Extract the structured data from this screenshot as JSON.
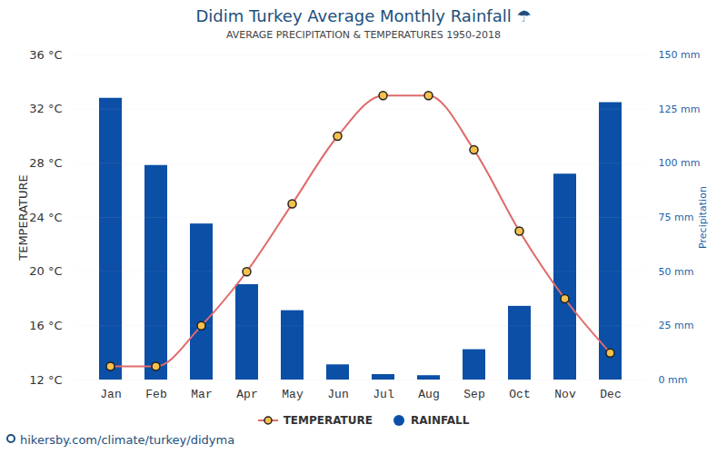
{
  "chart_data": {
    "type": "bar",
    "title": "Didim Turkey Average Monthly Rainfall ☂",
    "subtitle": "AVERAGE PRECIPITATION & TEMPERATURES 1950-2018",
    "caption": "hikersby.com/climate/turkey/didyma",
    "categories": [
      "Jan",
      "Feb",
      "Mar",
      "Apr",
      "May",
      "Jun",
      "Jul",
      "Aug",
      "Sep",
      "Oct",
      "Nov",
      "Dec"
    ],
    "ylabel": "TEMPERATURE",
    "y2label": "Precipitation",
    "ylim": [
      12,
      36
    ],
    "yticks": [
      {
        "value": 12,
        "label": "12 °C"
      },
      {
        "value": 16,
        "label": "16 °C"
      },
      {
        "value": 20,
        "label": "20 °C"
      },
      {
        "value": 24,
        "label": "24 °C"
      },
      {
        "value": 28,
        "label": "28 °C"
      },
      {
        "value": 32,
        "label": "32 °C"
      },
      {
        "value": 36,
        "label": "36 °C"
      }
    ],
    "y2lim": [
      0,
      150
    ],
    "y2ticks": [
      {
        "value": 0,
        "label": "0 mm"
      },
      {
        "value": 25,
        "label": "25 mm"
      },
      {
        "value": 50,
        "label": "50 mm"
      },
      {
        "value": 75,
        "label": "75 mm"
      },
      {
        "value": 100,
        "label": "100 mm"
      },
      {
        "value": 125,
        "label": "125 mm"
      },
      {
        "value": 150,
        "label": "150 mm"
      }
    ],
    "grid": true,
    "legend": "bottom",
    "series": [
      {
        "name": "TEMPERATURE",
        "type": "line",
        "color": "#e06b6b",
        "marker": "circle",
        "values": [
          13,
          13,
          16,
          20,
          25,
          30,
          33,
          33,
          29,
          23,
          18,
          14
        ]
      },
      {
        "name": "RAINFALL",
        "type": "bar",
        "axis": "y2",
        "color": "#0b4fa6",
        "values": [
          130,
          99,
          72,
          44,
          32,
          7,
          2.5,
          2,
          14,
          34,
          95,
          128
        ]
      }
    ]
  }
}
